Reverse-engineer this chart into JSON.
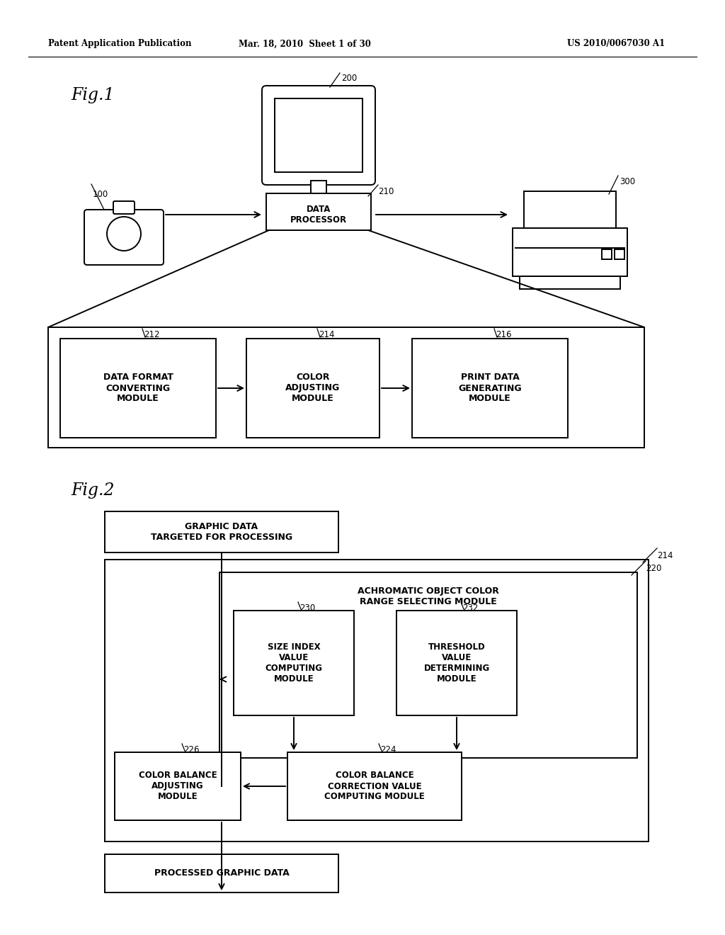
{
  "bg_color": "#ffffff",
  "text_color": "#000000",
  "header_left": "Patent Application Publication",
  "header_mid": "Mar. 18, 2010  Sheet 1 of 30",
  "header_right": "US 2010/0067030 A1",
  "fig1_label": "Fig.1",
  "fig2_label": "Fig.2",
  "label_200": "200",
  "label_100": "100",
  "label_300": "300",
  "label_210": "210",
  "label_212": "212",
  "label_214_fig1": "214",
  "label_216": "216",
  "label_214_fig2": "214",
  "label_220": "220",
  "label_224": "224",
  "label_226": "226",
  "label_230": "230",
  "label_232": "232",
  "box_210_text": "DATA\nPROCESSOR",
  "box_212_text": "DATA FORMAT\nCONVERTING\nMODULE",
  "box_214_text": "COLOR\nADJUSTING\nMODULE",
  "box_216_text": "PRINT DATA\nGENERATING\nMODULE",
  "box_top_text": "GRAPHIC DATA\nTARGETED FOR PROCESSING",
  "box_220_text": "ACHROMATIC OBJECT COLOR\nRANGE SELECTING MODULE",
  "box_230_text": "SIZE INDEX\nVALUE\nCOMPUTING\nMODULE",
  "box_232_text": "THRESHOLD\nVALUE\nDETERMINING\nMODULE",
  "box_226_text": "COLOR BALANCE\nADJUSTING\nMODULE",
  "box_224_text": "COLOR BALANCE\nCORRECTION VALUE\nCOMPUTING MODULE",
  "box_bottom_text": "PROCESSED GRAPHIC DATA"
}
